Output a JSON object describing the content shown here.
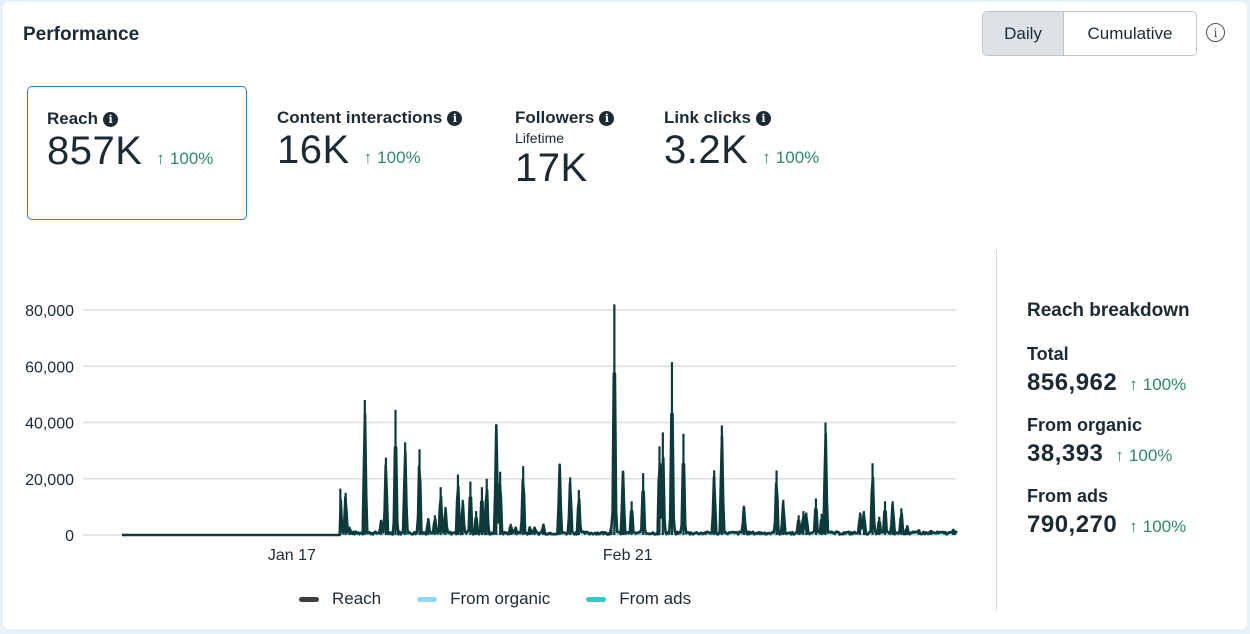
{
  "header": {
    "title": "Performance",
    "toggle": {
      "options": [
        "Daily",
        "Cumulative"
      ],
      "selected": "Daily"
    },
    "info_icon": "info-outline-icon"
  },
  "metrics": [
    {
      "label": "Reach",
      "sublabel": "",
      "value": "857K",
      "delta": "100%",
      "delta_direction": "up",
      "selected": true,
      "info_icon": "info-solid-icon"
    },
    {
      "label": "Content interactions",
      "sublabel": "",
      "value": "16K",
      "delta": "100%",
      "delta_direction": "up",
      "selected": false,
      "info_icon": "info-solid-icon"
    },
    {
      "label": "Followers",
      "sublabel": "Lifetime",
      "value": "17K",
      "delta": "",
      "delta_direction": "",
      "selected": false,
      "info_icon": "info-solid-icon"
    },
    {
      "label": "Link clicks",
      "sublabel": "",
      "value": "3.2K",
      "delta": "100%",
      "delta_direction": "up",
      "selected": false,
      "info_icon": "info-solid-icon"
    }
  ],
  "breakdown": {
    "title": "Reach breakdown",
    "items": [
      {
        "label": "Total",
        "value": "856,962",
        "delta": "100%"
      },
      {
        "label": "From organic",
        "value": "38,393",
        "delta": "100%"
      },
      {
        "label": "From ads",
        "value": "790,270",
        "delta": "100%"
      }
    ]
  },
  "colors": {
    "reach": "#0d3b3a",
    "reach_noise": "#3a3f44",
    "organic": "#8fd8f7",
    "ads": "#2ec9c9",
    "positive": "#2e8a6b",
    "selected_border": "#2a7fc4"
  },
  "chart_data": {
    "type": "line",
    "title": "",
    "xlabel": "",
    "ylabel": "",
    "x_ticks": [
      {
        "label": "Jan 17",
        "x": 17.7
      },
      {
        "label": "Feb 21",
        "x": 52.7
      }
    ],
    "x_domain": [
      0,
      87
    ],
    "ylim": [
      0,
      80000
    ],
    "y_ticks": [
      0,
      20000,
      40000,
      60000,
      80000
    ],
    "y_tick_labels": [
      "0",
      "20,000",
      "40,000",
      "60,000",
      "80,000"
    ],
    "grid": true,
    "legend": {
      "placement": "bottom-center",
      "entries": [
        "Reach",
        "From organic",
        "From ads"
      ]
    },
    "data_start_x": 22.7,
    "baseline_reach": 600,
    "baseline_organic": 300,
    "reach_spikes": [
      [
        22.75,
        16500
      ],
      [
        23.3,
        15000
      ],
      [
        23.7,
        3000
      ],
      [
        25.3,
        48000
      ],
      [
        27.0,
        5000
      ],
      [
        27.5,
        27500
      ],
      [
        28.5,
        44500
      ],
      [
        29.5,
        33000
      ],
      [
        31.0,
        30500
      ],
      [
        31.9,
        6000
      ],
      [
        32.6,
        7000
      ],
      [
        33.2,
        17000
      ],
      [
        33.7,
        10000
      ],
      [
        35.0,
        21500
      ],
      [
        35.5,
        12500
      ],
      [
        36.3,
        19000
      ],
      [
        36.9,
        8500
      ],
      [
        37.5,
        17000
      ],
      [
        38.0,
        20000
      ],
      [
        39.0,
        39000
      ],
      [
        39.4,
        22500
      ],
      [
        40.5,
        4000
      ],
      [
        41.0,
        3000
      ],
      [
        41.8,
        24500
      ],
      [
        42.5,
        3000
      ],
      [
        43.0,
        3000
      ],
      [
        43.9,
        4000
      ],
      [
        45.6,
        25000
      ],
      [
        46.7,
        20500
      ],
      [
        47.6,
        16000
      ],
      [
        51.0,
        3000
      ],
      [
        51.3,
        82000
      ],
      [
        52.2,
        22500
      ],
      [
        53.1,
        12000
      ],
      [
        54.3,
        22000
      ],
      [
        56.0,
        31500
      ],
      [
        56.35,
        36500
      ],
      [
        57.3,
        61500
      ],
      [
        58.5,
        36000
      ],
      [
        61.7,
        23000
      ],
      [
        62.5,
        39000
      ],
      [
        64.8,
        10000
      ],
      [
        68.2,
        23000
      ],
      [
        68.9,
        12500
      ],
      [
        70.5,
        7000
      ],
      [
        71.0,
        8500
      ],
      [
        71.3,
        8000
      ],
      [
        72.3,
        13000
      ],
      [
        72.9,
        7500
      ],
      [
        73.3,
        40000
      ],
      [
        76.9,
        8000
      ],
      [
        77.3,
        8500
      ],
      [
        78.2,
        25500
      ],
      [
        78.9,
        6500
      ],
      [
        79.5,
        12000
      ],
      [
        80.3,
        12000
      ],
      [
        81.2,
        9500
      ],
      [
        81.8,
        3500
      ],
      [
        83.0,
        2000
      ],
      [
        84.3,
        1800
      ],
      [
        86.6,
        2200
      ]
    ],
    "series": [
      {
        "name": "Reach",
        "total": 856962
      },
      {
        "name": "From organic",
        "total": 38393
      },
      {
        "name": "From ads",
        "total": 790270
      }
    ]
  }
}
